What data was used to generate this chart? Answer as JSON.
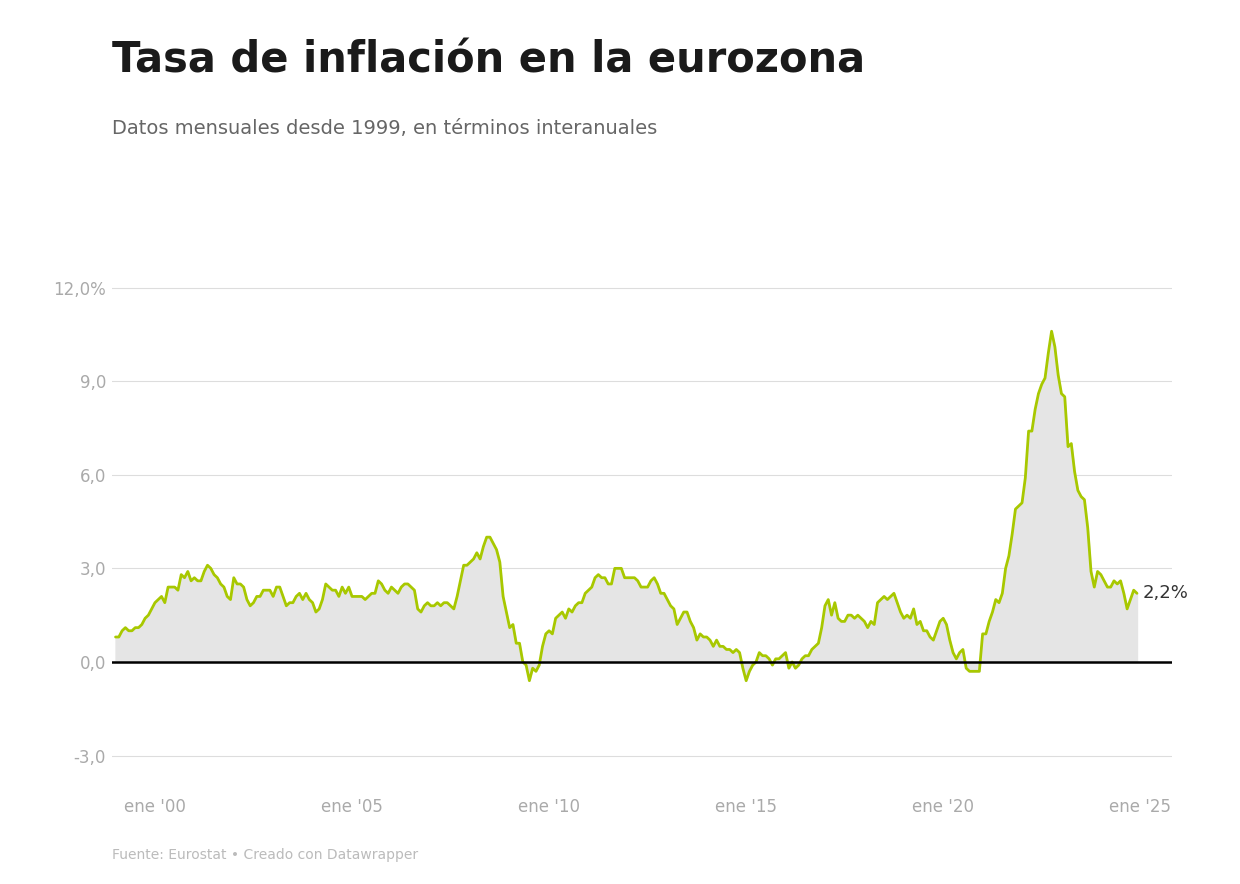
{
  "title": "Tasa de inflación en la eurozona",
  "subtitle": "Datos mensuales desde 1999, en términos interanuales",
  "source": "Fuente: Eurostat • Creado con Datawrapper",
  "last_value_label": "2,2%",
  "last_value": 2.2,
  "line_color": "#a8c800",
  "fill_color": "#e5e5e5",
  "background_color": "#ffffff",
  "title_fontsize": 30,
  "subtitle_fontsize": 14,
  "ylim": [
    -4.0,
    13.0
  ],
  "yticks": [
    -3.0,
    0.0,
    3.0,
    6.0,
    9.0,
    12.0
  ],
  "ytick_labels": [
    "-3,0",
    "0,0",
    "3,0",
    "6,0",
    "9,0",
    "12,0%"
  ],
  "xtick_labels": [
    "ene '00",
    "ene '05",
    "ene '10",
    "ene '15",
    "ene '20",
    "ene '25"
  ],
  "xtick_years": [
    2000,
    2005,
    2010,
    2015,
    2020,
    2025
  ],
  "data": [
    [
      1999,
      1,
      0.8
    ],
    [
      1999,
      2,
      0.8
    ],
    [
      1999,
      3,
      1.0
    ],
    [
      1999,
      4,
      1.1
    ],
    [
      1999,
      5,
      1.0
    ],
    [
      1999,
      6,
      1.0
    ],
    [
      1999,
      7,
      1.1
    ],
    [
      1999,
      8,
      1.1
    ],
    [
      1999,
      9,
      1.2
    ],
    [
      1999,
      10,
      1.4
    ],
    [
      1999,
      11,
      1.5
    ],
    [
      1999,
      12,
      1.7
    ],
    [
      2000,
      1,
      1.9
    ],
    [
      2000,
      2,
      2.0
    ],
    [
      2000,
      3,
      2.1
    ],
    [
      2000,
      4,
      1.9
    ],
    [
      2000,
      5,
      2.4
    ],
    [
      2000,
      6,
      2.4
    ],
    [
      2000,
      7,
      2.4
    ],
    [
      2000,
      8,
      2.3
    ],
    [
      2000,
      9,
      2.8
    ],
    [
      2000,
      10,
      2.7
    ],
    [
      2000,
      11,
      2.9
    ],
    [
      2000,
      12,
      2.6
    ],
    [
      2001,
      1,
      2.7
    ],
    [
      2001,
      2,
      2.6
    ],
    [
      2001,
      3,
      2.6
    ],
    [
      2001,
      4,
      2.9
    ],
    [
      2001,
      5,
      3.1
    ],
    [
      2001,
      6,
      3.0
    ],
    [
      2001,
      7,
      2.8
    ],
    [
      2001,
      8,
      2.7
    ],
    [
      2001,
      9,
      2.5
    ],
    [
      2001,
      10,
      2.4
    ],
    [
      2001,
      11,
      2.1
    ],
    [
      2001,
      12,
      2.0
    ],
    [
      2002,
      1,
      2.7
    ],
    [
      2002,
      2,
      2.5
    ],
    [
      2002,
      3,
      2.5
    ],
    [
      2002,
      4,
      2.4
    ],
    [
      2002,
      5,
      2.0
    ],
    [
      2002,
      6,
      1.8
    ],
    [
      2002,
      7,
      1.9
    ],
    [
      2002,
      8,
      2.1
    ],
    [
      2002,
      9,
      2.1
    ],
    [
      2002,
      10,
      2.3
    ],
    [
      2002,
      11,
      2.3
    ],
    [
      2002,
      12,
      2.3
    ],
    [
      2003,
      1,
      2.1
    ],
    [
      2003,
      2,
      2.4
    ],
    [
      2003,
      3,
      2.4
    ],
    [
      2003,
      4,
      2.1
    ],
    [
      2003,
      5,
      1.8
    ],
    [
      2003,
      6,
      1.9
    ],
    [
      2003,
      7,
      1.9
    ],
    [
      2003,
      8,
      2.1
    ],
    [
      2003,
      9,
      2.2
    ],
    [
      2003,
      10,
      2.0
    ],
    [
      2003,
      11,
      2.2
    ],
    [
      2003,
      12,
      2.0
    ],
    [
      2004,
      1,
      1.9
    ],
    [
      2004,
      2,
      1.6
    ],
    [
      2004,
      3,
      1.7
    ],
    [
      2004,
      4,
      2.0
    ],
    [
      2004,
      5,
      2.5
    ],
    [
      2004,
      6,
      2.4
    ],
    [
      2004,
      7,
      2.3
    ],
    [
      2004,
      8,
      2.3
    ],
    [
      2004,
      9,
      2.1
    ],
    [
      2004,
      10,
      2.4
    ],
    [
      2004,
      11,
      2.2
    ],
    [
      2004,
      12,
      2.4
    ],
    [
      2005,
      1,
      2.1
    ],
    [
      2005,
      2,
      2.1
    ],
    [
      2005,
      3,
      2.1
    ],
    [
      2005,
      4,
      2.1
    ],
    [
      2005,
      5,
      2.0
    ],
    [
      2005,
      6,
      2.1
    ],
    [
      2005,
      7,
      2.2
    ],
    [
      2005,
      8,
      2.2
    ],
    [
      2005,
      9,
      2.6
    ],
    [
      2005,
      10,
      2.5
    ],
    [
      2005,
      11,
      2.3
    ],
    [
      2005,
      12,
      2.2
    ],
    [
      2006,
      1,
      2.4
    ],
    [
      2006,
      2,
      2.3
    ],
    [
      2006,
      3,
      2.2
    ],
    [
      2006,
      4,
      2.4
    ],
    [
      2006,
      5,
      2.5
    ],
    [
      2006,
      6,
      2.5
    ],
    [
      2006,
      7,
      2.4
    ],
    [
      2006,
      8,
      2.3
    ],
    [
      2006,
      9,
      1.7
    ],
    [
      2006,
      10,
      1.6
    ],
    [
      2006,
      11,
      1.8
    ],
    [
      2006,
      12,
      1.9
    ],
    [
      2007,
      1,
      1.8
    ],
    [
      2007,
      2,
      1.8
    ],
    [
      2007,
      3,
      1.9
    ],
    [
      2007,
      4,
      1.8
    ],
    [
      2007,
      5,
      1.9
    ],
    [
      2007,
      6,
      1.9
    ],
    [
      2007,
      7,
      1.8
    ],
    [
      2007,
      8,
      1.7
    ],
    [
      2007,
      9,
      2.1
    ],
    [
      2007,
      10,
      2.6
    ],
    [
      2007,
      11,
      3.1
    ],
    [
      2007,
      12,
      3.1
    ],
    [
      2008,
      1,
      3.2
    ],
    [
      2008,
      2,
      3.3
    ],
    [
      2008,
      3,
      3.5
    ],
    [
      2008,
      4,
      3.3
    ],
    [
      2008,
      5,
      3.7
    ],
    [
      2008,
      6,
      4.0
    ],
    [
      2008,
      7,
      4.0
    ],
    [
      2008,
      8,
      3.8
    ],
    [
      2008,
      9,
      3.6
    ],
    [
      2008,
      10,
      3.2
    ],
    [
      2008,
      11,
      2.1
    ],
    [
      2008,
      12,
      1.6
    ],
    [
      2009,
      1,
      1.1
    ],
    [
      2009,
      2,
      1.2
    ],
    [
      2009,
      3,
      0.6
    ],
    [
      2009,
      4,
      0.6
    ],
    [
      2009,
      5,
      0.0
    ],
    [
      2009,
      6,
      -0.1
    ],
    [
      2009,
      7,
      -0.6
    ],
    [
      2009,
      8,
      -0.2
    ],
    [
      2009,
      9,
      -0.3
    ],
    [
      2009,
      10,
      -0.1
    ],
    [
      2009,
      11,
      0.5
    ],
    [
      2009,
      12,
      0.9
    ],
    [
      2010,
      1,
      1.0
    ],
    [
      2010,
      2,
      0.9
    ],
    [
      2010,
      3,
      1.4
    ],
    [
      2010,
      4,
      1.5
    ],
    [
      2010,
      5,
      1.6
    ],
    [
      2010,
      6,
      1.4
    ],
    [
      2010,
      7,
      1.7
    ],
    [
      2010,
      8,
      1.6
    ],
    [
      2010,
      9,
      1.8
    ],
    [
      2010,
      10,
      1.9
    ],
    [
      2010,
      11,
      1.9
    ],
    [
      2010,
      12,
      2.2
    ],
    [
      2011,
      1,
      2.3
    ],
    [
      2011,
      2,
      2.4
    ],
    [
      2011,
      3,
      2.7
    ],
    [
      2011,
      4,
      2.8
    ],
    [
      2011,
      5,
      2.7
    ],
    [
      2011,
      6,
      2.7
    ],
    [
      2011,
      7,
      2.5
    ],
    [
      2011,
      8,
      2.5
    ],
    [
      2011,
      9,
      3.0
    ],
    [
      2011,
      10,
      3.0
    ],
    [
      2011,
      11,
      3.0
    ],
    [
      2011,
      12,
      2.7
    ],
    [
      2012,
      1,
      2.7
    ],
    [
      2012,
      2,
      2.7
    ],
    [
      2012,
      3,
      2.7
    ],
    [
      2012,
      4,
      2.6
    ],
    [
      2012,
      5,
      2.4
    ],
    [
      2012,
      6,
      2.4
    ],
    [
      2012,
      7,
      2.4
    ],
    [
      2012,
      8,
      2.6
    ],
    [
      2012,
      9,
      2.7
    ],
    [
      2012,
      10,
      2.5
    ],
    [
      2012,
      11,
      2.2
    ],
    [
      2012,
      12,
      2.2
    ],
    [
      2013,
      1,
      2.0
    ],
    [
      2013,
      2,
      1.8
    ],
    [
      2013,
      3,
      1.7
    ],
    [
      2013,
      4,
      1.2
    ],
    [
      2013,
      5,
      1.4
    ],
    [
      2013,
      6,
      1.6
    ],
    [
      2013,
      7,
      1.6
    ],
    [
      2013,
      8,
      1.3
    ],
    [
      2013,
      9,
      1.1
    ],
    [
      2013,
      10,
      0.7
    ],
    [
      2013,
      11,
      0.9
    ],
    [
      2013,
      12,
      0.8
    ],
    [
      2014,
      1,
      0.8
    ],
    [
      2014,
      2,
      0.7
    ],
    [
      2014,
      3,
      0.5
    ],
    [
      2014,
      4,
      0.7
    ],
    [
      2014,
      5,
      0.5
    ],
    [
      2014,
      6,
      0.5
    ],
    [
      2014,
      7,
      0.4
    ],
    [
      2014,
      8,
      0.4
    ],
    [
      2014,
      9,
      0.3
    ],
    [
      2014,
      10,
      0.4
    ],
    [
      2014,
      11,
      0.3
    ],
    [
      2014,
      12,
      -0.2
    ],
    [
      2015,
      1,
      -0.6
    ],
    [
      2015,
      2,
      -0.3
    ],
    [
      2015,
      3,
      -0.1
    ],
    [
      2015,
      4,
      0.0
    ],
    [
      2015,
      5,
      0.3
    ],
    [
      2015,
      6,
      0.2
    ],
    [
      2015,
      7,
      0.2
    ],
    [
      2015,
      8,
      0.1
    ],
    [
      2015,
      9,
      -0.1
    ],
    [
      2015,
      10,
      0.1
    ],
    [
      2015,
      11,
      0.1
    ],
    [
      2015,
      12,
      0.2
    ],
    [
      2016,
      1,
      0.3
    ],
    [
      2016,
      2,
      -0.2
    ],
    [
      2016,
      3,
      0.0
    ],
    [
      2016,
      4,
      -0.2
    ],
    [
      2016,
      5,
      -0.1
    ],
    [
      2016,
      6,
      0.1
    ],
    [
      2016,
      7,
      0.2
    ],
    [
      2016,
      8,
      0.2
    ],
    [
      2016,
      9,
      0.4
    ],
    [
      2016,
      10,
      0.5
    ],
    [
      2016,
      11,
      0.6
    ],
    [
      2016,
      12,
      1.1
    ],
    [
      2017,
      1,
      1.8
    ],
    [
      2017,
      2,
      2.0
    ],
    [
      2017,
      3,
      1.5
    ],
    [
      2017,
      4,
      1.9
    ],
    [
      2017,
      5,
      1.4
    ],
    [
      2017,
      6,
      1.3
    ],
    [
      2017,
      7,
      1.3
    ],
    [
      2017,
      8,
      1.5
    ],
    [
      2017,
      9,
      1.5
    ],
    [
      2017,
      10,
      1.4
    ],
    [
      2017,
      11,
      1.5
    ],
    [
      2017,
      12,
      1.4
    ],
    [
      2018,
      1,
      1.3
    ],
    [
      2018,
      2,
      1.1
    ],
    [
      2018,
      3,
      1.3
    ],
    [
      2018,
      4,
      1.2
    ],
    [
      2018,
      5,
      1.9
    ],
    [
      2018,
      6,
      2.0
    ],
    [
      2018,
      7,
      2.1
    ],
    [
      2018,
      8,
      2.0
    ],
    [
      2018,
      9,
      2.1
    ],
    [
      2018,
      10,
      2.2
    ],
    [
      2018,
      11,
      1.9
    ],
    [
      2018,
      12,
      1.6
    ],
    [
      2019,
      1,
      1.4
    ],
    [
      2019,
      2,
      1.5
    ],
    [
      2019,
      3,
      1.4
    ],
    [
      2019,
      4,
      1.7
    ],
    [
      2019,
      5,
      1.2
    ],
    [
      2019,
      6,
      1.3
    ],
    [
      2019,
      7,
      1.0
    ],
    [
      2019,
      8,
      1.0
    ],
    [
      2019,
      9,
      0.8
    ],
    [
      2019,
      10,
      0.7
    ],
    [
      2019,
      11,
      1.0
    ],
    [
      2019,
      12,
      1.3
    ],
    [
      2020,
      1,
      1.4
    ],
    [
      2020,
      2,
      1.2
    ],
    [
      2020,
      3,
      0.7
    ],
    [
      2020,
      4,
      0.3
    ],
    [
      2020,
      5,
      0.1
    ],
    [
      2020,
      6,
      0.3
    ],
    [
      2020,
      7,
      0.4
    ],
    [
      2020,
      8,
      -0.2
    ],
    [
      2020,
      9,
      -0.3
    ],
    [
      2020,
      10,
      -0.3
    ],
    [
      2020,
      11,
      -0.3
    ],
    [
      2020,
      12,
      -0.3
    ],
    [
      2021,
      1,
      0.9
    ],
    [
      2021,
      2,
      0.9
    ],
    [
      2021,
      3,
      1.3
    ],
    [
      2021,
      4,
      1.6
    ],
    [
      2021,
      5,
      2.0
    ],
    [
      2021,
      6,
      1.9
    ],
    [
      2021,
      7,
      2.2
    ],
    [
      2021,
      8,
      3.0
    ],
    [
      2021,
      9,
      3.4
    ],
    [
      2021,
      10,
      4.1
    ],
    [
      2021,
      11,
      4.9
    ],
    [
      2021,
      12,
      5.0
    ],
    [
      2022,
      1,
      5.1
    ],
    [
      2022,
      2,
      5.9
    ],
    [
      2022,
      3,
      7.4
    ],
    [
      2022,
      4,
      7.4
    ],
    [
      2022,
      5,
      8.1
    ],
    [
      2022,
      6,
      8.6
    ],
    [
      2022,
      7,
      8.9
    ],
    [
      2022,
      8,
      9.1
    ],
    [
      2022,
      9,
      9.9
    ],
    [
      2022,
      10,
      10.6
    ],
    [
      2022,
      11,
      10.1
    ],
    [
      2022,
      12,
      9.2
    ],
    [
      2023,
      1,
      8.6
    ],
    [
      2023,
      2,
      8.5
    ],
    [
      2023,
      3,
      6.9
    ],
    [
      2023,
      4,
      7.0
    ],
    [
      2023,
      5,
      6.1
    ],
    [
      2023,
      6,
      5.5
    ],
    [
      2023,
      7,
      5.3
    ],
    [
      2023,
      8,
      5.2
    ],
    [
      2023,
      9,
      4.3
    ],
    [
      2023,
      10,
      2.9
    ],
    [
      2023,
      11,
      2.4
    ],
    [
      2023,
      12,
      2.9
    ],
    [
      2024,
      1,
      2.8
    ],
    [
      2024,
      2,
      2.6
    ],
    [
      2024,
      3,
      2.4
    ],
    [
      2024,
      4,
      2.4
    ],
    [
      2024,
      5,
      2.6
    ],
    [
      2024,
      6,
      2.5
    ],
    [
      2024,
      7,
      2.6
    ],
    [
      2024,
      8,
      2.2
    ],
    [
      2024,
      9,
      1.7
    ],
    [
      2024,
      10,
      2.0
    ],
    [
      2024,
      11,
      2.3
    ],
    [
      2024,
      12,
      2.2
    ]
  ]
}
